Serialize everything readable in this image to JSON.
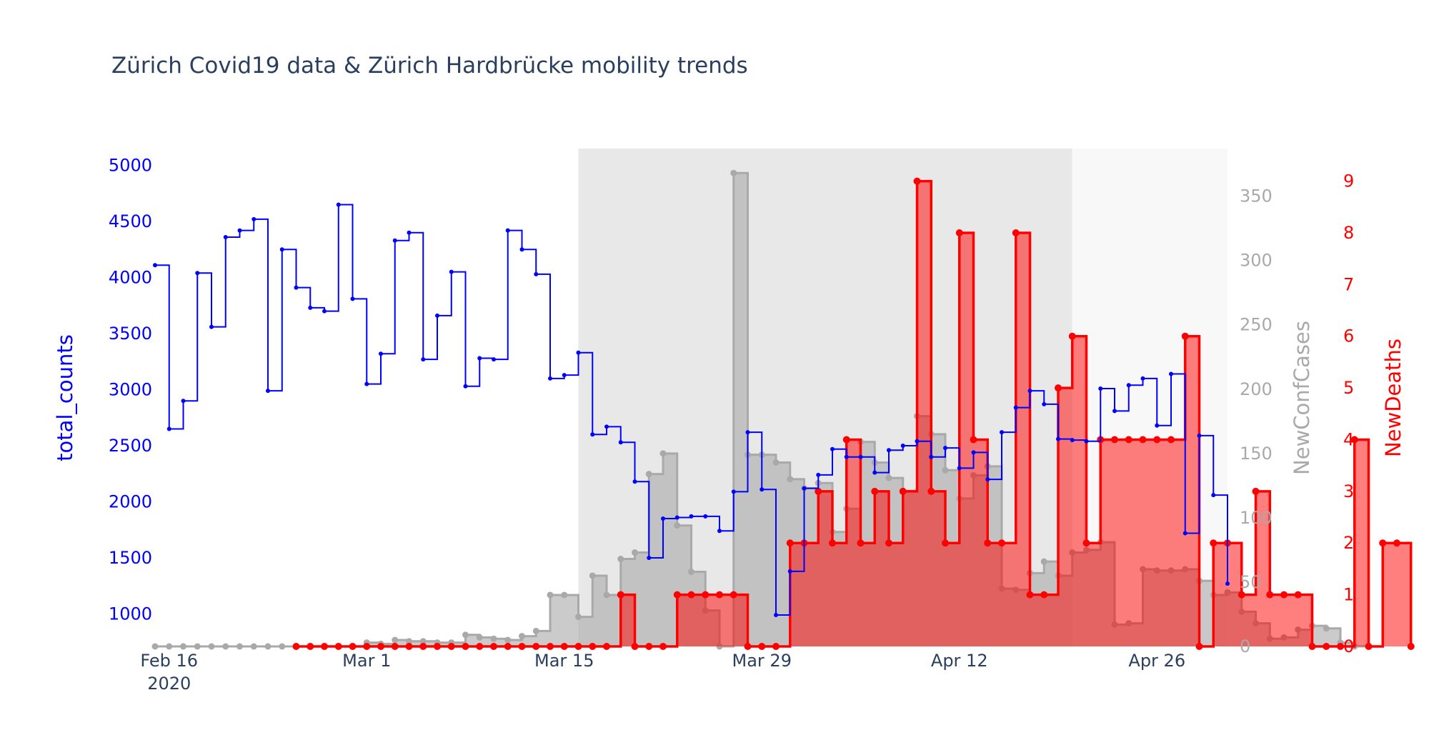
{
  "chart_data": {
    "type": "line",
    "title": "Zürich Covid19 data & Zürich Hardbrücke mobility trends",
    "x_ticks": [
      {
        "date": "2020-02-16",
        "label": "Feb 16",
        "sub": "2020"
      },
      {
        "date": "2020-03-01",
        "label": "Mar 1",
        "sub": ""
      },
      {
        "date": "2020-03-15",
        "label": "Mar 15",
        "sub": ""
      },
      {
        "date": "2020-03-29",
        "label": "Mar 29",
        "sub": ""
      },
      {
        "date": "2020-04-12",
        "label": "Apr 12",
        "sub": ""
      },
      {
        "date": "2020-04-26",
        "label": "Apr 26",
        "sub": ""
      }
    ],
    "xlim": [
      "2020-02-15",
      "2020-05-01"
    ],
    "shaded_periods": [
      {
        "start": "2020-03-16",
        "end": "2020-04-20",
        "color": "#e8e8e8"
      },
      {
        "start": "2020-04-20",
        "end": "2020-05-01",
        "color": "#f8f8f8"
      }
    ],
    "y_axes": {
      "y1": {
        "title": "total_counts",
        "color": "#0000ff",
        "ylim": [
          710,
          5150
        ],
        "ticks": [
          1000,
          1500,
          2000,
          2500,
          3000,
          3500,
          4000,
          4500,
          5000
        ]
      },
      "y2": {
        "title": "NewConfCases",
        "color": "#a9a9a9",
        "ylim": [
          0,
          387
        ],
        "ticks": [
          0,
          50,
          100,
          150,
          200,
          250,
          300,
          350
        ]
      },
      "y3": {
        "title": "NewDeaths",
        "color": "#ff0000",
        "ylim": [
          0,
          9.63
        ],
        "ticks": [
          0,
          1,
          2,
          3,
          4,
          5,
          6,
          7,
          8,
          9
        ]
      }
    },
    "series": [
      {
        "name": "total_counts",
        "axis": "y1",
        "color": "#0000ff",
        "start_date": "2020-02-15",
        "values": [
          4110,
          2650,
          2900,
          4040,
          3560,
          4360,
          4420,
          4520,
          2990,
          4250,
          3910,
          3730,
          3700,
          4650,
          3810,
          3050,
          3320,
          4330,
          4400,
          3270,
          3660,
          4050,
          3030,
          3280,
          3270,
          4420,
          4250,
          4030,
          3100,
          3130,
          3330,
          2600,
          2670,
          2530,
          2180,
          1500,
          1850,
          1860,
          1870,
          1870,
          1740,
          2090,
          2620,
          2110,
          990,
          1380,
          2120,
          2240,
          2470,
          2400,
          2400,
          2260,
          2460,
          2500,
          2540,
          2400,
          2480,
          2300,
          2440,
          2200,
          2620,
          2840,
          2990,
          2870,
          2560,
          2550,
          2540,
          3010,
          2810,
          3040,
          3100,
          2680,
          3140,
          1720,
          2590,
          2060,
          1270
        ]
      },
      {
        "name": "NewConfCases",
        "axis": "y2",
        "color": "#a9a9a9",
        "start_date": "2020-02-15",
        "values": [
          0,
          0,
          0,
          0,
          0,
          0,
          0,
          0,
          0,
          0,
          0,
          0,
          0,
          0,
          0,
          3,
          2,
          5,
          4,
          4,
          3,
          3,
          9,
          7,
          6,
          5,
          8,
          12,
          40,
          40,
          23,
          55,
          40,
          68,
          73,
          134,
          150,
          94,
          58,
          28,
          0,
          368,
          149,
          149,
          143,
          130,
          123,
          127,
          89,
          107,
          159,
          143,
          131,
          121,
          179,
          165,
          137,
          115,
          133,
          140,
          45,
          44,
          57,
          66,
          55,
          73,
          75,
          81,
          17,
          18,
          60,
          59,
          59,
          60,
          51,
          40,
          42,
          27,
          18,
          6,
          7,
          13,
          16,
          14,
          3,
          0,
          0
        ]
      },
      {
        "name": "NewDeaths",
        "axis": "y3",
        "color": "#ff0000",
        "start_date": "2020-02-25",
        "values": [
          0,
          0,
          0,
          0,
          0,
          0,
          0,
          0,
          0,
          0,
          0,
          0,
          0,
          0,
          0,
          0,
          0,
          0,
          0,
          0,
          0,
          0,
          0,
          1,
          0,
          0,
          0,
          1,
          1,
          1,
          1,
          1,
          0,
          0,
          0,
          2,
          2,
          3,
          2,
          4,
          2,
          3,
          2,
          3,
          9,
          3,
          2,
          8,
          4,
          2,
          2,
          8,
          1,
          1,
          5,
          6,
          2,
          4,
          4,
          4,
          4,
          4,
          4,
          6,
          0,
          2,
          2,
          1,
          3,
          1,
          1,
          1,
          0,
          0,
          0,
          4,
          0,
          2,
          2,
          0
        ]
      }
    ]
  }
}
